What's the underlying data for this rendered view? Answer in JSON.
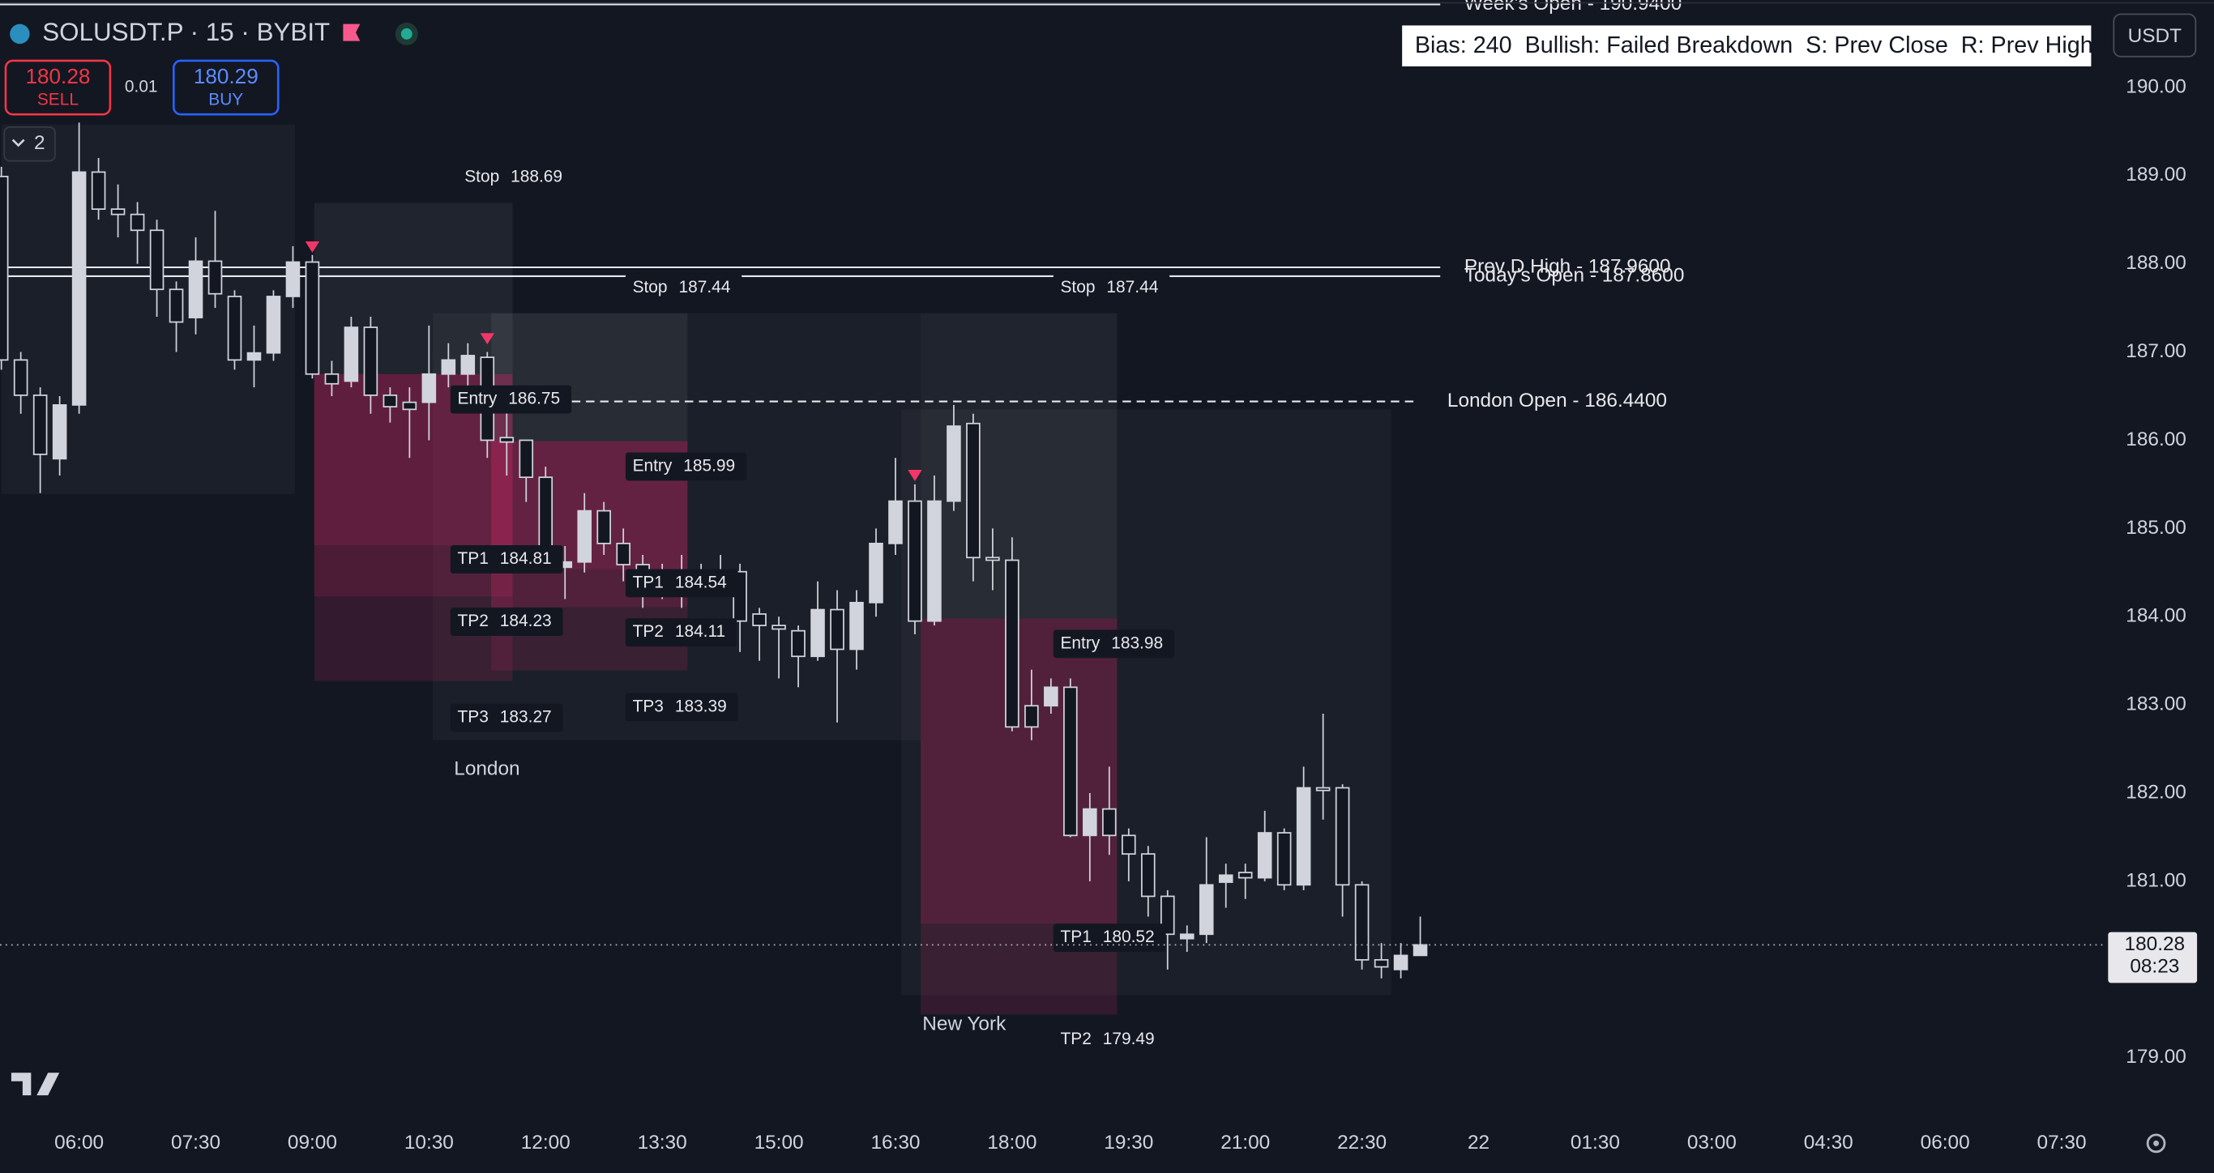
{
  "chart_data": {
    "type": "candlestick",
    "title": "SOLUSDT.P · 15 · BYBIT",
    "open": [
      188.99,
      186.91,
      186.51,
      185.79,
      186.4,
      189.04,
      188.62,
      188.56,
      188.38,
      187.71,
      187.39,
      188.03,
      187.63,
      186.91,
      186.99,
      187.63,
      188.02,
      186.75,
      186.67,
      187.28,
      186.51,
      186.43,
      186.43,
      186.75,
      186.75,
      186.94,
      186.03,
      186.0,
      185.58,
      184.56,
      184.62,
      185.2,
      184.83,
      184.59,
      184.46,
      184.4,
      184.43,
      184.51,
      184.51,
      184.03,
      183.9,
      183.84,
      183.55,
      184.08,
      183.63,
      184.16,
      184.83,
      185.31,
      183.95,
      185.31,
      186.19,
      184.67,
      184.64,
      182.99,
      182.99,
      183.2,
      181.52,
      181.82,
      181.52,
      181.31,
      180.83,
      180.35,
      180.4,
      180.99,
      181.1,
      181.04,
      181.55,
      180.96,
      182.06,
      182.06,
      180.96,
      180.11,
      180.0,
      180.16
    ],
    "high": [
      189.1,
      187.0,
      186.6,
      186.5,
      189.6,
      189.2,
      188.9,
      188.7,
      188.5,
      187.8,
      188.3,
      188.6,
      187.7,
      187.3,
      187.7,
      188.2,
      188.1,
      186.9,
      187.4,
      187.4,
      186.6,
      186.6,
      187.3,
      187.1,
      187.1,
      187.0,
      186.4,
      186.0,
      185.7,
      184.8,
      185.4,
      185.3,
      185.0,
      184.7,
      184.6,
      184.7,
      184.6,
      184.7,
      184.6,
      184.1,
      184.0,
      183.9,
      184.4,
      184.3,
      184.3,
      185.0,
      185.8,
      185.5,
      185.6,
      186.4,
      186.3,
      185.0,
      184.9,
      183.4,
      183.3,
      183.3,
      182.0,
      182.3,
      181.6,
      181.4,
      180.9,
      180.5,
      181.5,
      181.2,
      181.2,
      181.8,
      181.6,
      182.3,
      182.9,
      182.1,
      181.0,
      180.3,
      180.3,
      180.6
    ],
    "low": [
      186.8,
      186.3,
      185.4,
      185.6,
      186.3,
      188.5,
      188.3,
      188.0,
      187.4,
      187.0,
      187.2,
      187.5,
      186.8,
      186.6,
      186.9,
      187.5,
      186.7,
      186.5,
      186.6,
      186.3,
      186.2,
      185.8,
      186.0,
      186.6,
      186.6,
      185.8,
      185.6,
      185.3,
      184.5,
      184.2,
      184.5,
      184.7,
      184.4,
      184.1,
      184.2,
      184.1,
      184.3,
      184.3,
      183.6,
      183.5,
      183.3,
      183.2,
      183.5,
      182.8,
      183.4,
      184.0,
      184.7,
      183.8,
      183.9,
      185.2,
      184.4,
      184.3,
      182.7,
      182.6,
      182.9,
      181.5,
      181.0,
      181.3,
      181.0,
      180.6,
      180.0,
      180.2,
      180.3,
      180.7,
      180.8,
      181.0,
      180.9,
      180.9,
      181.7,
      180.6,
      180.0,
      179.9,
      179.9,
      180.2
    ],
    "close": [
      186.91,
      186.51,
      185.84,
      186.4,
      189.04,
      188.62,
      188.56,
      188.38,
      187.71,
      187.34,
      188.03,
      187.66,
      186.91,
      186.99,
      187.63,
      188.02,
      186.75,
      186.64,
      187.28,
      186.51,
      186.38,
      186.35,
      186.75,
      186.91,
      186.96,
      186.0,
      185.98,
      185.58,
      184.67,
      184.62,
      185.2,
      184.83,
      184.59,
      184.43,
      184.4,
      184.51,
      184.51,
      184.46,
      183.95,
      183.9,
      183.86,
      183.55,
      184.08,
      183.63,
      184.16,
      184.83,
      185.31,
      183.95,
      185.31,
      186.16,
      184.67,
      184.64,
      182.75,
      182.75,
      183.2,
      181.52,
      181.82,
      181.52,
      181.31,
      180.83,
      180.4,
      180.4,
      180.96,
      181.07,
      181.04,
      181.55,
      180.96,
      182.06,
      182.03,
      180.96,
      180.11,
      180.03,
      180.16,
      180.28
    ],
    "xlim": [
      -0.07,
      108.17
    ],
    "xticks": [
      {
        "value": 4,
        "label": "06:00"
      },
      {
        "value": 10,
        "label": "07:30"
      },
      {
        "value": 16,
        "label": "09:00"
      },
      {
        "value": 22,
        "label": "10:30"
      },
      {
        "value": 28,
        "label": "12:00"
      },
      {
        "value": 34,
        "label": "13:30"
      },
      {
        "value": 40,
        "label": "15:00"
      },
      {
        "value": 46,
        "label": "16:30"
      },
      {
        "value": 52,
        "label": "18:00"
      },
      {
        "value": 58,
        "label": "19:30"
      },
      {
        "value": 64,
        "label": "21:00"
      },
      {
        "value": 70,
        "label": "22:30"
      },
      {
        "value": 76,
        "label": "22"
      },
      {
        "value": 82,
        "label": "01:30"
      },
      {
        "value": 88,
        "label": "03:00"
      },
      {
        "value": 94,
        "label": "04:30"
      },
      {
        "value": 100,
        "label": "06:00"
      },
      {
        "value": 106,
        "label": "07:30"
      }
    ],
    "ylim": [
      178.27,
      190.99
    ],
    "yticks": [
      {
        "value": 179,
        "label": "179.00"
      },
      {
        "value": 180,
        "label": "180.00"
      },
      {
        "value": 181,
        "label": "181.00"
      },
      {
        "value": 182,
        "label": "182.00"
      },
      {
        "value": 183,
        "label": "183.00"
      },
      {
        "value": 184,
        "label": "184.00"
      },
      {
        "value": 185,
        "label": "185.00"
      },
      {
        "value": 186,
        "label": "186.00"
      },
      {
        "value": 187,
        "label": "187.00"
      },
      {
        "value": 188,
        "label": "188.00"
      },
      {
        "value": 189,
        "label": "189.00"
      },
      {
        "value": 190,
        "label": "190.00"
      }
    ],
    "grid": false,
    "up_color": "#d1d4dc",
    "down_color": "#d1d4dc",
    "levels": [
      {
        "label": "Week's Open - 190.9400",
        "value": 190.94,
        "line_style": "solid"
      },
      {
        "label": "Prev D High - 187.9600",
        "value": 187.96,
        "line_style": "solid"
      },
      {
        "label": "Today's Open - 187.8600",
        "value": 187.86,
        "line_style": "solid"
      },
      {
        "label": "London Open - 186.4400",
        "value": 186.44,
        "line_style": "dashed"
      }
    ],
    "sessions": [
      {
        "start": 0,
        "end": 15.1,
        "high": 189.58,
        "low": 185.39
      },
      {
        "name": "London",
        "start": 22.2,
        "end": 47.3,
        "high": 187.44,
        "low": 182.6
      },
      {
        "name": "New York",
        "start": 46.3,
        "end": 71.5,
        "high": 186.35,
        "low": 179.71
      }
    ],
    "setups": [
      {
        "start": 16.1,
        "end": 26.3,
        "stop": {
          "label": "Stop",
          "value": 188.69
        },
        "entry": {
          "label": "Entry",
          "value": 186.75
        },
        "targets": [
          {
            "label": "TP1",
            "value": 184.81
          },
          {
            "label": "TP2",
            "value": 184.23
          },
          {
            "label": "TP3",
            "value": 183.27
          }
        ]
      },
      {
        "start": 25.2,
        "end": 35.3,
        "stop": {
          "label": "Stop",
          "value": 187.44
        },
        "entry": {
          "label": "Entry",
          "value": 185.99
        },
        "targets": [
          {
            "label": "TP1",
            "value": 184.54
          },
          {
            "label": "TP2",
            "value": 184.11
          },
          {
            "label": "TP3",
            "value": 183.39
          }
        ]
      },
      {
        "start": 47.3,
        "end": 57.4,
        "stop": {
          "label": "Stop",
          "value": 187.44
        },
        "entry": {
          "label": "Entry",
          "value": 183.98
        },
        "targets": [
          {
            "label": "TP1",
            "value": 180.52
          },
          {
            "label": "TP2",
            "value": 179.49
          }
        ]
      }
    ],
    "signals": [
      {
        "x": 16,
        "value": 188.19
      },
      {
        "x": 25,
        "value": 187.15
      },
      {
        "x": 47,
        "value": 185.6
      }
    ],
    "signal_color": "#f23668",
    "last_price": {
      "value": 180.28,
      "countdown": "08:23"
    }
  },
  "ui": {
    "sell_price": "180.28",
    "sell": "SELL",
    "quantity": "0.01",
    "buy_price": "180.29",
    "buy": "BUY",
    "layouts": "2",
    "bias": "Bias: 240  Bullish: Failed Breakdown  S: Prev Close  R: Prev High",
    "currency": "USDT"
  }
}
